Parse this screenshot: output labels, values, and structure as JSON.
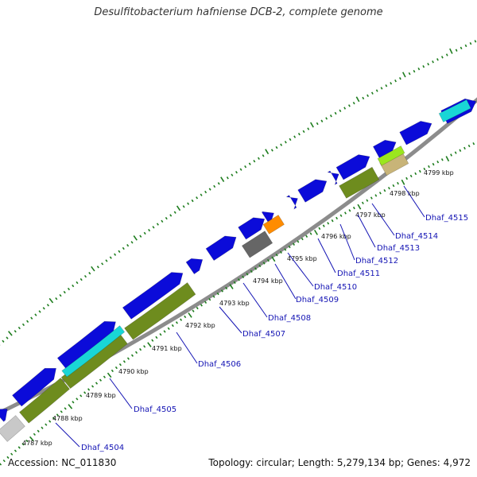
{
  "title": "Desulfitobacterium hafniense DCB-2, complete genome",
  "footer": {
    "accession": "Accession: NC_011830",
    "summary": "Topology: circular; Length: 5,279,134 bp; Genes: 4,972"
  },
  "colors": {
    "backbone": "#8c8c8c",
    "forward_cds": "#0b0bd9",
    "olive": "#6e8c1e",
    "cyan": "#19d6d6",
    "orange": "#ff8c00",
    "gray_block": "#666666",
    "light_gray": "#c8c8c8",
    "lime": "#9be61e",
    "tan": "#c8b478",
    "tick_green": "#1e7d1e",
    "label_blue": "#1414b4"
  },
  "scale": {
    "kbp_labels": [
      "4787 kbp",
      "4788 kbp",
      "4789 kbp",
      "4790 kbp",
      "4791 kbp",
      "4792 kbp",
      "4793 kbp",
      "4794 kbp",
      "4795 kbp",
      "4796 kbp",
      "4797 kbp",
      "4798 kbp",
      "4799 kbp"
    ]
  },
  "genes": {
    "labels": [
      "Dhaf_4504",
      "Dhaf_4505",
      "Dhaf_4506",
      "Dhaf_4507",
      "Dhaf_4508",
      "Dhaf_4509",
      "Dhaf_4510",
      "Dhaf_4511",
      "Dhaf_4512",
      "Dhaf_4513",
      "Dhaf_4514",
      "Dhaf_4515"
    ]
  }
}
